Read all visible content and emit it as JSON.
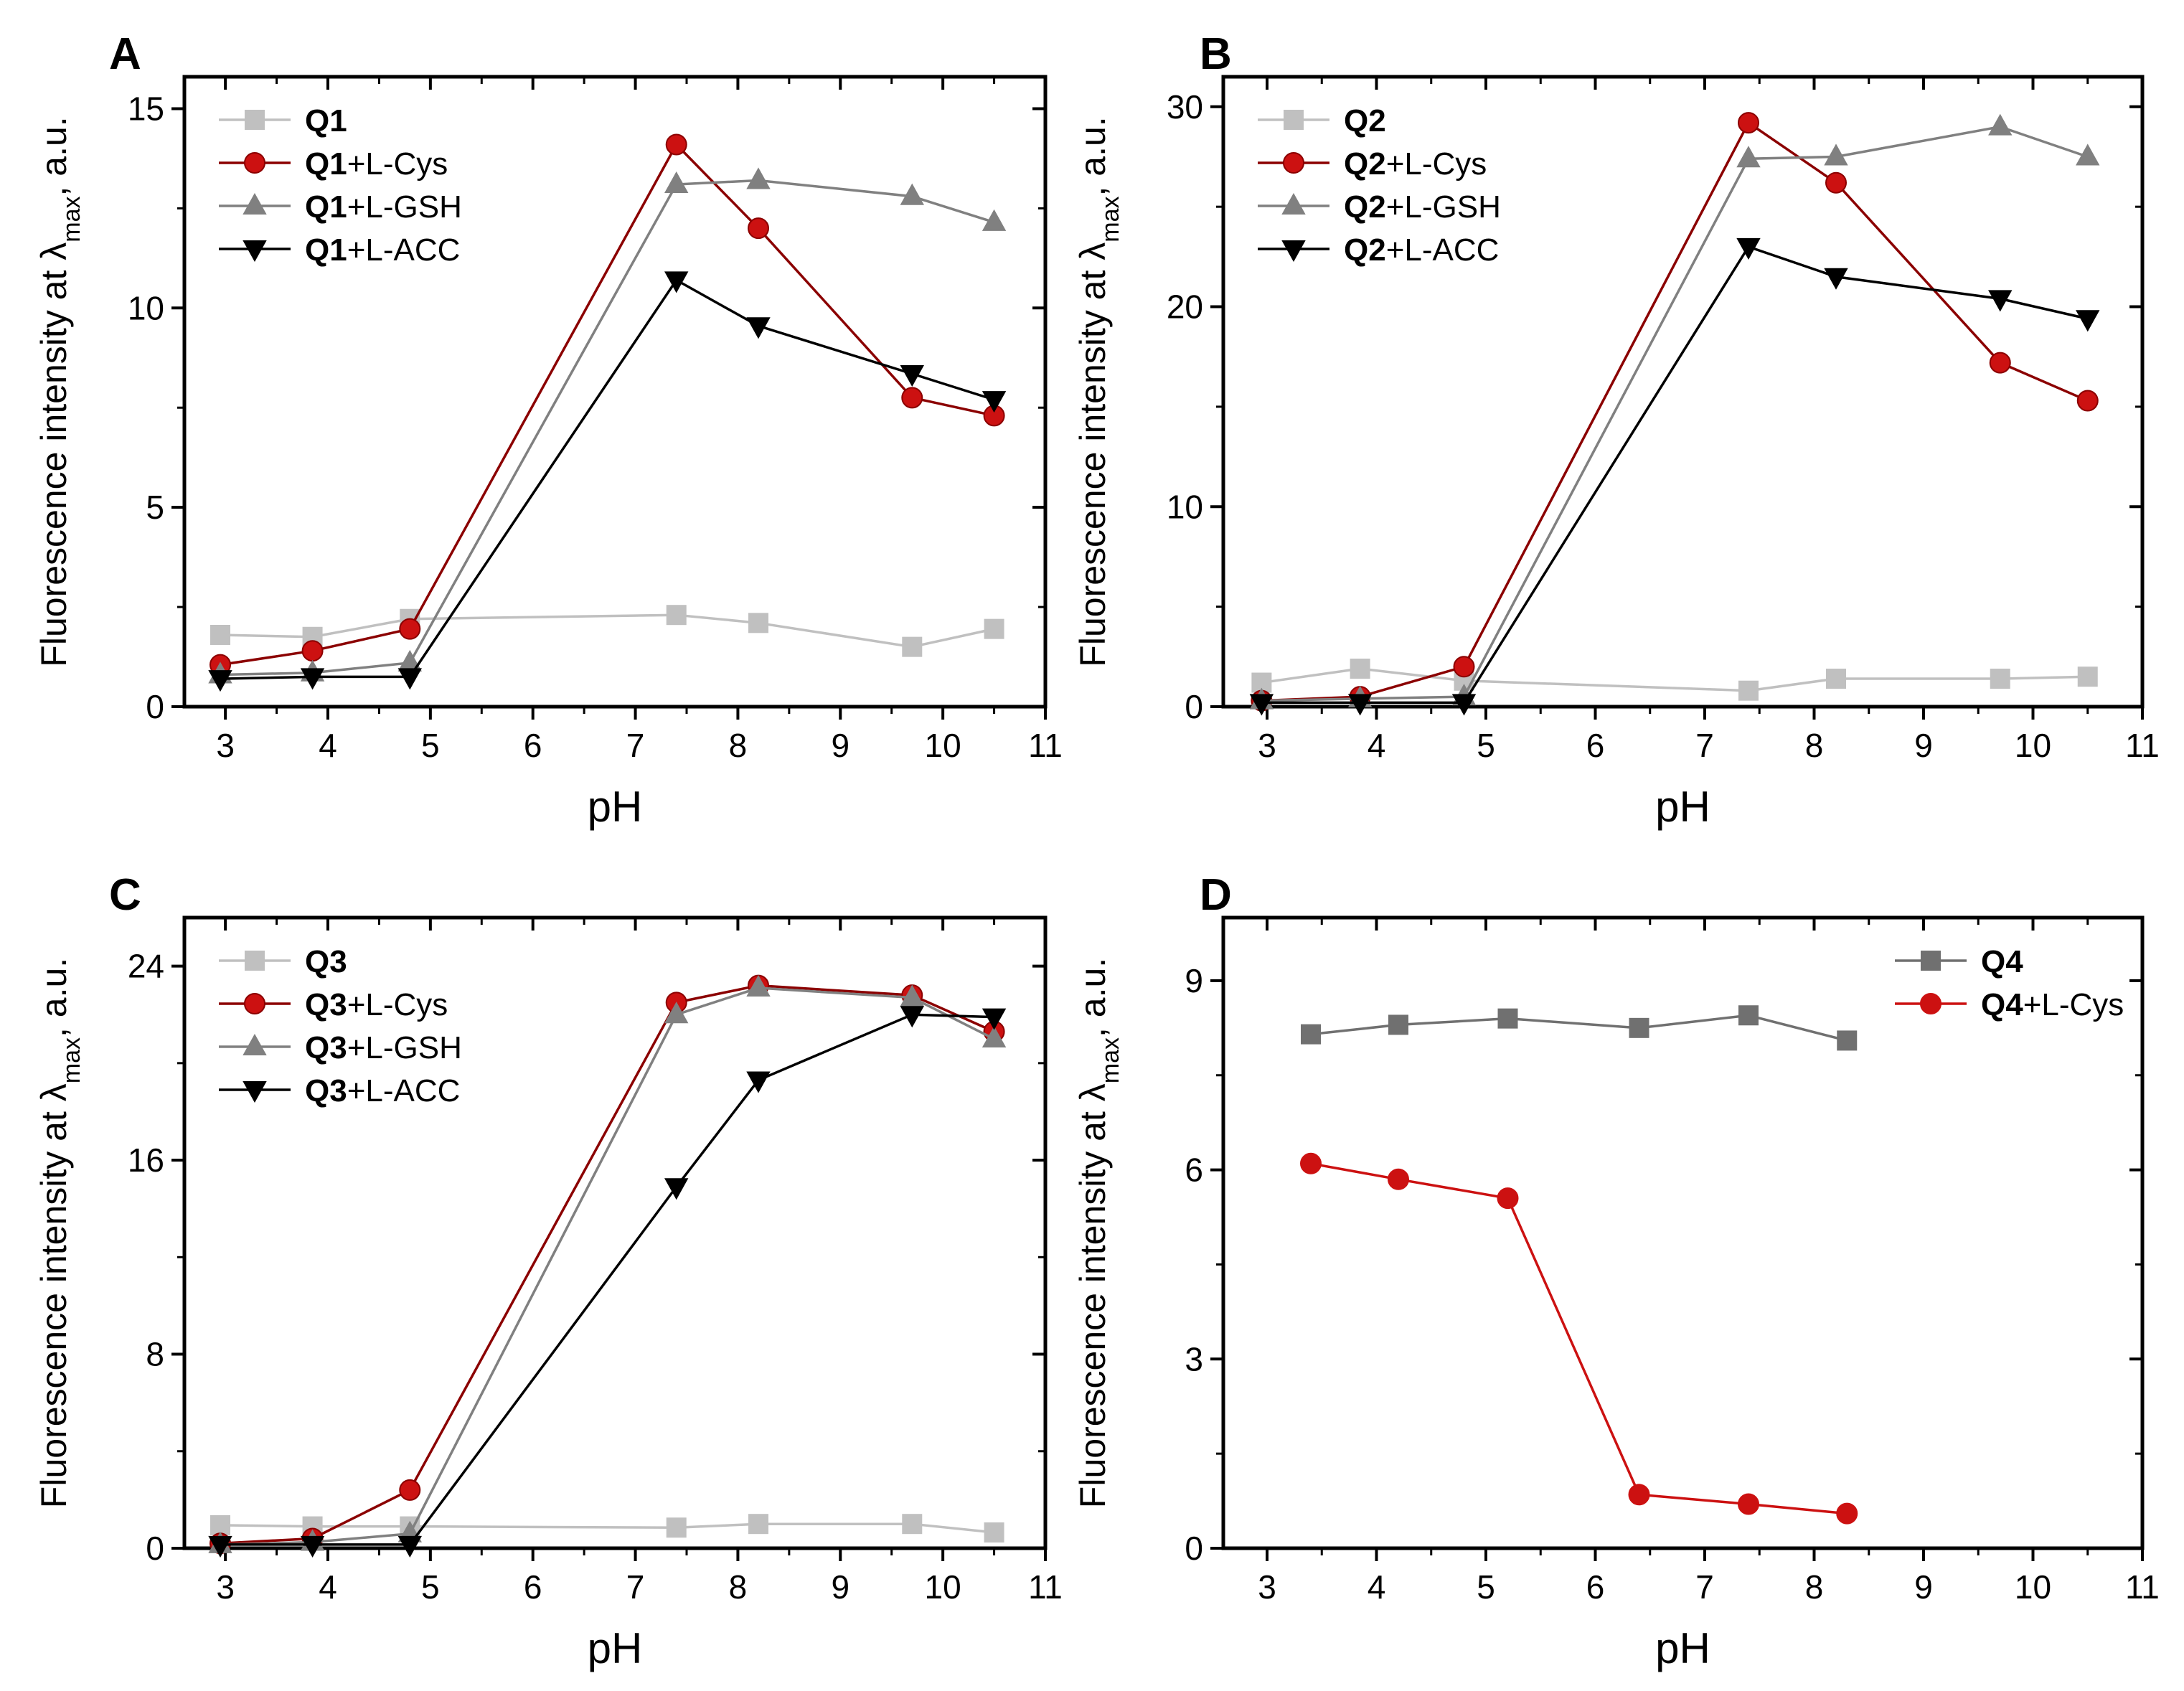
{
  "chart_data": [
    {
      "panel": "A",
      "type": "line",
      "xlabel": "pH",
      "ylabel": "Fluorescence intensity at λ",
      "ylabel_sub": "max",
      "ylabel_suffix": ", a.u.",
      "xlim": [
        2.6,
        11
      ],
      "ylim": [
        0,
        15.8
      ],
      "xticks": [
        3,
        4,
        5,
        6,
        7,
        8,
        9,
        10,
        11
      ],
      "yticks": [
        0,
        5,
        10,
        15
      ],
      "legend_position": "top-left",
      "series": [
        {
          "name": "Q1",
          "label_bold": "Q1",
          "label_rest": "",
          "marker": "square",
          "color": "#c0c0c0",
          "x": [
            2.95,
            3.85,
            4.8,
            7.4,
            8.2,
            9.7,
            10.5
          ],
          "y": [
            1.8,
            1.75,
            2.2,
            2.3,
            2.1,
            1.5,
            1.95
          ]
        },
        {
          "name": "Q1+L-Cys",
          "label_bold": "Q1",
          "label_rest": "+L-Cys",
          "marker": "circle",
          "color": "#8b0000",
          "fill": "#cc1111",
          "x": [
            2.95,
            3.85,
            4.8,
            7.4,
            8.2,
            9.7,
            10.5
          ],
          "y": [
            1.05,
            1.4,
            1.95,
            14.1,
            12.0,
            7.75,
            7.3
          ]
        },
        {
          "name": "Q1+L-GSH",
          "label_bold": "Q1",
          "label_rest": "+L-GSH",
          "marker": "triangle-up",
          "color": "#808080",
          "x": [
            2.95,
            3.85,
            4.8,
            7.4,
            8.2,
            9.7,
            10.5
          ],
          "y": [
            0.8,
            0.85,
            1.1,
            13.1,
            13.2,
            12.8,
            12.15
          ]
        },
        {
          "name": "Q1+L-ACC",
          "label_bold": "Q1",
          "label_rest": "+L-ACC",
          "marker": "triangle-down",
          "color": "#000000",
          "x": [
            2.95,
            3.85,
            4.8,
            7.4,
            8.2,
            9.7,
            10.5
          ],
          "y": [
            0.7,
            0.75,
            0.75,
            10.7,
            9.55,
            8.35,
            7.7
          ]
        }
      ]
    },
    {
      "panel": "B",
      "type": "line",
      "xlabel": "pH",
      "ylabel": "Fluorescence intensity at λ",
      "ylabel_sub": "max",
      "ylabel_suffix": ", a.u.",
      "xlim": [
        2.6,
        11
      ],
      "ylim": [
        0,
        31.5
      ],
      "xticks": [
        3,
        4,
        5,
        6,
        7,
        8,
        9,
        10,
        11
      ],
      "yticks": [
        0,
        10,
        20,
        30
      ],
      "legend_position": "top-left",
      "series": [
        {
          "name": "Q2",
          "label_bold": "Q2",
          "label_rest": "",
          "marker": "square",
          "color": "#c0c0c0",
          "x": [
            2.95,
            3.85,
            4.8,
            7.4,
            8.2,
            9.7,
            10.5
          ],
          "y": [
            1.2,
            1.9,
            1.3,
            0.8,
            1.4,
            1.4,
            1.5
          ]
        },
        {
          "name": "Q2+L-Cys",
          "label_bold": "Q2",
          "label_rest": "+L-Cys",
          "marker": "circle",
          "color": "#8b0000",
          "fill": "#cc1111",
          "x": [
            2.95,
            3.85,
            4.8,
            7.4,
            8.2,
            9.7,
            10.5
          ],
          "y": [
            0.3,
            0.5,
            2.0,
            29.2,
            26.2,
            17.2,
            15.3
          ]
        },
        {
          "name": "Q2+L-GSH",
          "label_bold": "Q2",
          "label_rest": "+L-GSH",
          "marker": "triangle-up",
          "color": "#808080",
          "x": [
            2.95,
            3.85,
            4.8,
            7.4,
            8.2,
            9.7,
            10.5
          ],
          "y": [
            0.3,
            0.4,
            0.5,
            27.4,
            27.5,
            29.0,
            27.5
          ]
        },
        {
          "name": "Q2+L-ACC",
          "label_bold": "Q2",
          "label_rest": "+L-ACC",
          "marker": "triangle-down",
          "color": "#000000",
          "x": [
            2.95,
            3.85,
            4.8,
            7.4,
            8.2,
            9.7,
            10.5
          ],
          "y": [
            0.2,
            0.2,
            0.2,
            23.0,
            21.5,
            20.4,
            19.4
          ]
        }
      ]
    },
    {
      "panel": "C",
      "type": "line",
      "xlabel": "pH",
      "ylabel": "Fluorescence intensity at λ",
      "ylabel_sub": "max",
      "ylabel_suffix": ", a.u.",
      "xlim": [
        2.6,
        11
      ],
      "ylim": [
        0,
        26
      ],
      "xticks": [
        3,
        4,
        5,
        6,
        7,
        8,
        9,
        10,
        11
      ],
      "yticks": [
        0,
        8,
        16,
        24
      ],
      "legend_position": "top-left",
      "series": [
        {
          "name": "Q3",
          "label_bold": "Q3",
          "label_rest": "",
          "marker": "square",
          "color": "#c0c0c0",
          "x": [
            2.95,
            3.85,
            4.8,
            7.4,
            8.2,
            9.7,
            10.5
          ],
          "y": [
            0.95,
            0.9,
            0.9,
            0.85,
            1.0,
            1.0,
            0.65
          ]
        },
        {
          "name": "Q3+L-Cys",
          "label_bold": "Q3",
          "label_rest": "+L-Cys",
          "marker": "circle",
          "color": "#8b0000",
          "fill": "#cc1111",
          "x": [
            2.95,
            3.85,
            4.8,
            7.4,
            8.2,
            9.7,
            10.5
          ],
          "y": [
            0.2,
            0.4,
            2.4,
            22.5,
            23.2,
            22.8,
            21.3
          ]
        },
        {
          "name": "Q3+L-GSH",
          "label_bold": "Q3",
          "label_rest": "+L-GSH",
          "marker": "triangle-up",
          "color": "#808080",
          "x": [
            2.95,
            3.85,
            4.8,
            7.4,
            8.2,
            9.7,
            10.5
          ],
          "y": [
            0.15,
            0.25,
            0.6,
            22.0,
            23.1,
            22.7,
            21.0
          ]
        },
        {
          "name": "Q3+L-ACC",
          "label_bold": "Q3",
          "label_rest": "+L-ACC",
          "marker": "triangle-down",
          "color": "#000000",
          "x": [
            2.95,
            3.85,
            4.8,
            7.4,
            8.2,
            9.7,
            10.5
          ],
          "y": [
            0.15,
            0.15,
            0.15,
            14.9,
            19.3,
            22.0,
            21.9
          ]
        }
      ]
    },
    {
      "panel": "D",
      "type": "line",
      "xlabel": "pH",
      "ylabel": "Fluorescence intensity at λ",
      "ylabel_sub": "max",
      "ylabel_suffix": ", a.u.",
      "xlim": [
        2.6,
        11
      ],
      "ylim": [
        0,
        10
      ],
      "xticks": [
        3,
        4,
        5,
        6,
        7,
        8,
        9,
        10,
        11
      ],
      "yticks": [
        0,
        3,
        6,
        9
      ],
      "legend_position": "top-right",
      "series": [
        {
          "name": "Q4",
          "label_bold": "Q4",
          "label_rest": "",
          "marker": "square",
          "color": "#707070",
          "x": [
            3.4,
            4.2,
            5.2,
            6.4,
            7.4,
            8.3
          ],
          "y": [
            8.15,
            8.3,
            8.4,
            8.25,
            8.45,
            8.05
          ]
        },
        {
          "name": "Q4+L-Cys",
          "label_bold": "Q4",
          "label_rest": "+L-Cys",
          "marker": "circle",
          "color": "#cc1111",
          "fill": "#cc1111",
          "x": [
            3.4,
            4.2,
            5.2,
            6.4,
            7.4,
            8.3
          ],
          "y": [
            6.1,
            5.85,
            5.55,
            0.85,
            0.7,
            0.55
          ]
        }
      ]
    }
  ]
}
